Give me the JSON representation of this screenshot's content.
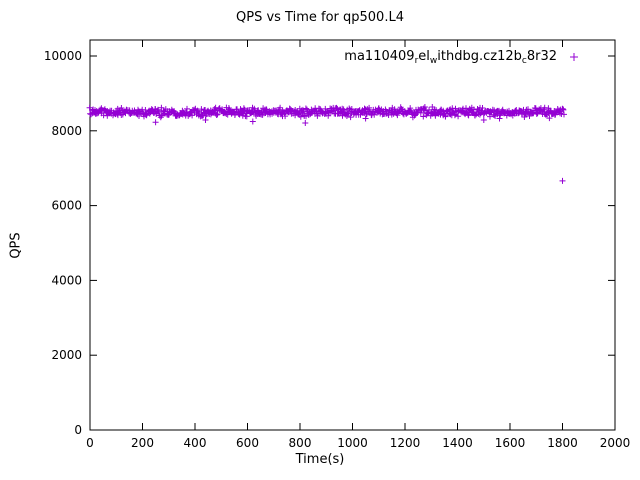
{
  "title": "QPS vs Time for qp500.L4",
  "axes": {
    "xlabel": "Time(s)",
    "ylabel": "QPS"
  },
  "legend": {
    "series_name": "ma110409_rel_withdbg.cz12b_8r32",
    "segments": [
      {
        "text": "ma110409",
        "sub": false
      },
      {
        "text": "r",
        "sub": true
      },
      {
        "text": "el",
        "sub": false
      },
      {
        "text": "w",
        "sub": true
      },
      {
        "text": "ithdbg.cz12b",
        "sub": false
      },
      {
        "text": "c",
        "sub": true
      },
      {
        "text": "8r32",
        "sub": false
      }
    ],
    "marker": "plus",
    "marker_color": "#9400d3",
    "position": "top-right-inside"
  },
  "chart_data": {
    "type": "scatter",
    "title": "QPS vs Time for qp500.L4",
    "xlabel": "Time(s)",
    "ylabel": "QPS",
    "xlim": [
      0,
      2000
    ],
    "ylim": [
      0,
      10000
    ],
    "xticks": [
      0,
      200,
      400,
      600,
      800,
      1000,
      1200,
      1400,
      1600,
      1800,
      2000
    ],
    "yticks": [
      0,
      2000,
      4000,
      6000,
      8000,
      10000
    ],
    "grid": false,
    "legend_position": "top-right-inside",
    "series": [
      {
        "name": "ma110409_rel_withdbg.cz12b_8r32",
        "color": "#9400d3",
        "marker": "plus",
        "band": {
          "description": "dense steady-state band of QPS samples",
          "x_start": 0,
          "x_end": 1805,
          "points": 760,
          "y_mean": 8500,
          "y_jitter": 110,
          "seed": 1234
        },
        "outliers": [
          [
            250,
            8230
          ],
          [
            440,
            8290
          ],
          [
            620,
            8250
          ],
          [
            820,
            8210
          ],
          [
            1050,
            8330
          ],
          [
            1230,
            8360
          ],
          [
            1500,
            8290
          ],
          [
            1560,
            8330
          ],
          [
            1655,
            8370
          ],
          [
            1750,
            8340
          ],
          [
            1800,
            6660
          ]
        ]
      }
    ]
  }
}
